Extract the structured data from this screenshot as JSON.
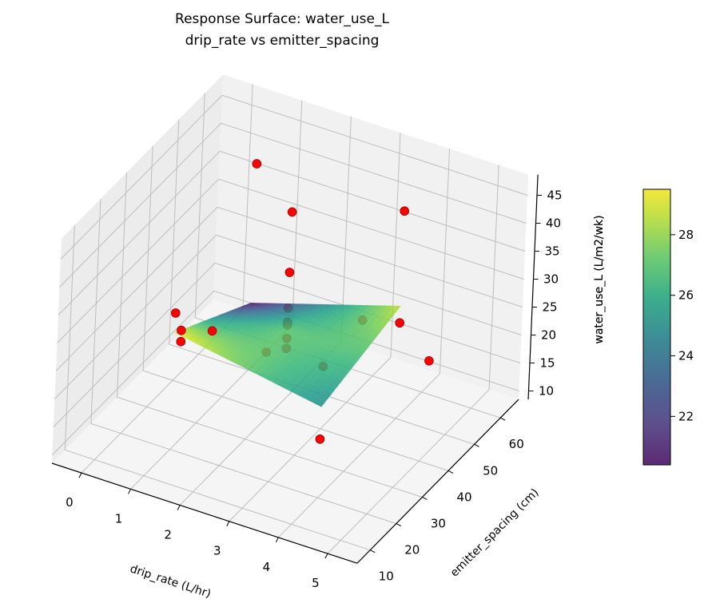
{
  "chart_data": {
    "type": "surface3d",
    "title": [
      "Response Surface: water_use_L",
      "drip_rate vs emitter_spacing"
    ],
    "xlabel": "drip_rate (L/hr)",
    "ylabel": "emitter_spacing (cm)",
    "zlabel": "water_use_L (L/m2/wk)",
    "xlim": [
      -0.6,
      5.6
    ],
    "ylim": [
      5,
      67
    ],
    "zlim": [
      8.5,
      48.7
    ],
    "xticks": [
      0,
      1,
      2,
      3,
      4,
      5
    ],
    "yticks": [
      10,
      20,
      30,
      40,
      50,
      60
    ],
    "zticks": [
      10,
      15,
      20,
      25,
      30,
      35,
      40,
      45
    ],
    "grid": true,
    "surface": {
      "colormap": "viridis",
      "drip_rate": [
        1,
        2.5,
        4
      ],
      "emitter_spacing": [
        20,
        35,
        50
      ],
      "water_use_L": [
        [
          29.4,
          24.95,
          20.5
        ],
        [
          27.1,
          27.0,
          24.55
        ],
        [
          24.8,
          26.7,
          28.6
        ]
      ]
    },
    "points": {
      "color": "#ff0000",
      "drip_rate": [
        1,
        2.5,
        4,
        2.5,
        1,
        0.38,
        0.38,
        1,
        4,
        4.62,
        4,
        2.5,
        2.5,
        2.5,
        2.5,
        2.5,
        2.5,
        4,
        4
      ],
      "emitter_spacing": [
        50,
        35,
        50,
        35,
        20,
        35,
        35,
        35,
        50,
        50,
        20,
        35,
        35,
        35,
        35,
        35,
        27,
        35,
        20
      ],
      "water_use_L": [
        45.4,
        48.2,
        45.6,
        37.4,
        32.9,
        20.9,
        18.9,
        22.6,
        25.6,
        20.6,
        19.0,
        31.0,
        28.5,
        28.0,
        25.6,
        23.8,
        26.9,
        33.2,
        32.0
      ]
    },
    "colorbar": {
      "label": "water_use_L (L/m2/wk)",
      "range": [
        20.4,
        29.5
      ],
      "ticks": [
        22,
        24,
        26,
        28
      ]
    }
  }
}
